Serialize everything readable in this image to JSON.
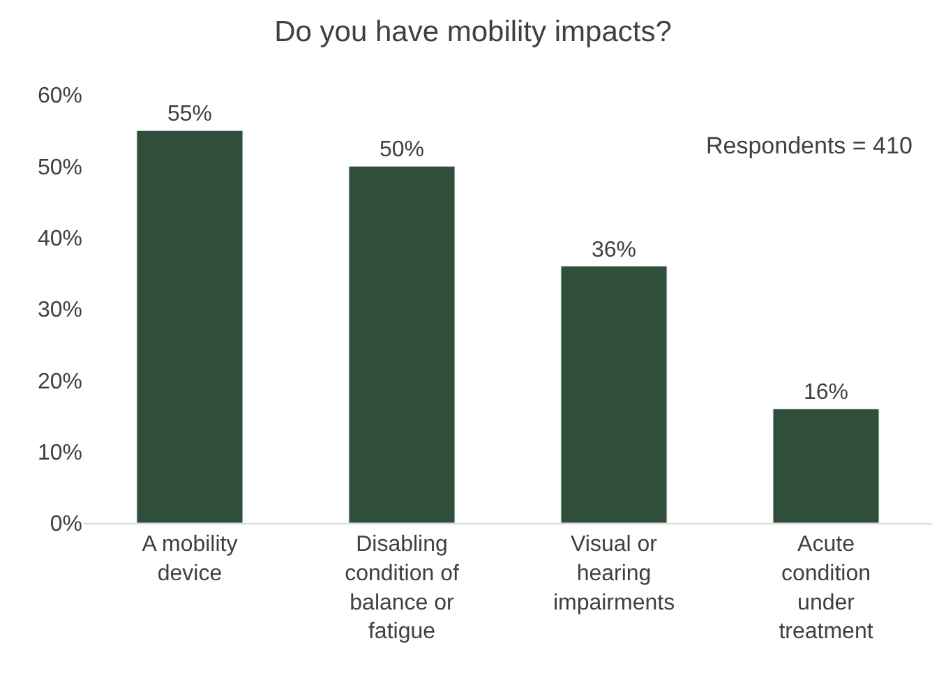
{
  "chart_data": {
    "type": "bar",
    "title": "Do you have mobility impacts?",
    "categories": [
      "A mobility device",
      "Disabling condition of balance or fatigue",
      "Visual or hearing impairments",
      "Acute condition under treatment"
    ],
    "values": [
      55,
      50,
      36,
      16
    ],
    "value_labels": [
      "55%",
      "50%",
      "36%",
      "16%"
    ],
    "color": "#2f4f3b",
    "ylim": [
      0,
      60
    ],
    "yticks": [
      {
        "value": 0,
        "label": "0%"
      },
      {
        "value": 10,
        "label": "10%"
      },
      {
        "value": 20,
        "label": "20%"
      },
      {
        "value": 30,
        "label": "30%"
      },
      {
        "value": 40,
        "label": "40%"
      },
      {
        "value": 50,
        "label": "50%"
      },
      {
        "value": 60,
        "label": "60%"
      }
    ],
    "annotations": [
      "Respondents = 410"
    ],
    "grid": false
  }
}
